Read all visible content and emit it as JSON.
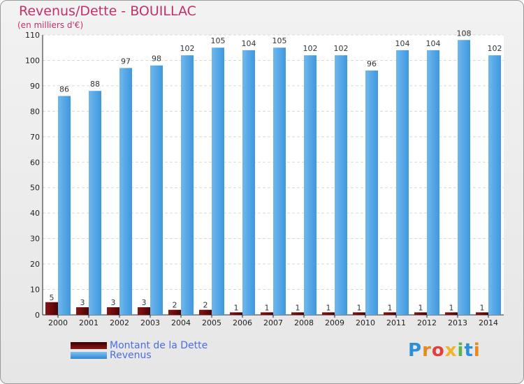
{
  "title": "Revenus/Dette - BOUILLAC",
  "subtitle": "(en milliers d'€)",
  "logo": {
    "text": "Proxiti",
    "colors": [
      "#2f8fd6",
      "#e58a1f",
      "#e0413a",
      "#f0b428",
      "#5bb548",
      "#2f8fd6",
      "#e58a1f"
    ]
  },
  "legend": {
    "items": [
      {
        "label": "Montant de la Dette",
        "color": "#6b0c0c"
      },
      {
        "label": "Revenus",
        "color": "#4aa3e4"
      }
    ]
  },
  "chart_data": {
    "type": "bar",
    "title": "Revenus/Dette - BOUILLAC",
    "ylabel": "(en milliers d'€)",
    "xlabel": "",
    "ylim": [
      0,
      110
    ],
    "yticks": [
      0,
      10,
      20,
      30,
      40,
      50,
      60,
      70,
      80,
      90,
      100,
      110
    ],
    "grid": true,
    "legend_position": "bottom-left",
    "categories": [
      "2000",
      "2001",
      "2002",
      "2003",
      "2004",
      "2005",
      "2006",
      "2007",
      "2008",
      "2009",
      "2010",
      "2011",
      "2012",
      "2013",
      "2014"
    ],
    "series": [
      {
        "name": "Montant de la Dette",
        "color": "#6b0c0c",
        "values": [
          5,
          3,
          3,
          3,
          2,
          2,
          1,
          1,
          1,
          1,
          1,
          1,
          1,
          1,
          1
        ]
      },
      {
        "name": "Revenus",
        "color": "#4aa3e4",
        "values": [
          86,
          88,
          97,
          98,
          102,
          105,
          104,
          105,
          102,
          102,
          96,
          104,
          104,
          108,
          102
        ]
      }
    ]
  }
}
